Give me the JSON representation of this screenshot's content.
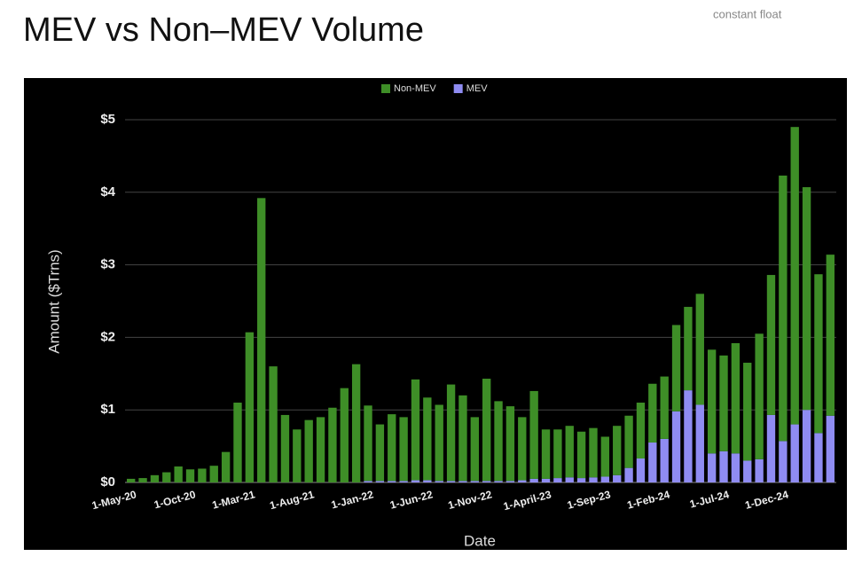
{
  "header": {
    "title": "MEV vs Non–MEV Volume",
    "note": "constant float"
  },
  "chart_data": {
    "type": "bar",
    "stacked": true,
    "categories": [
      "1-May-20",
      null,
      null,
      null,
      null,
      "1-Oct-20",
      null,
      null,
      null,
      null,
      "1-Mar-21",
      null,
      null,
      null,
      null,
      "1-Aug-21",
      null,
      null,
      null,
      null,
      "1-Jan-22",
      null,
      null,
      null,
      null,
      "1-Jun-22",
      null,
      null,
      null,
      null,
      "1-Nov-22",
      null,
      null,
      null,
      null,
      "1-April-23",
      null,
      null,
      null,
      null,
      "1-Sep-23",
      null,
      null,
      null,
      null,
      "1-Feb-24",
      null,
      null,
      null,
      null,
      "1-Jul-24",
      null,
      null,
      null,
      null,
      "1-Dec-24",
      null,
      null,
      null,
      null
    ],
    "series": [
      {
        "name": "MEV",
        "color": "#8f8cf2",
        "values": [
          0,
          0,
          0,
          0,
          0,
          0,
          0,
          0,
          0,
          0,
          0,
          0,
          0,
          0,
          0,
          0,
          0,
          0,
          0,
          0,
          0.02,
          0.02,
          0.02,
          0.02,
          0.03,
          0.03,
          0.02,
          0.02,
          0.02,
          0.02,
          0.02,
          0.02,
          0.02,
          0.03,
          0.05,
          0.05,
          0.06,
          0.07,
          0.06,
          0.07,
          0.08,
          0.1,
          0.2,
          0.33,
          0.55,
          0.6,
          0.98,
          1.27,
          1.07,
          0.4,
          0.43,
          0.4,
          0.3,
          0.32,
          0.93,
          0.57,
          0.8,
          1.0,
          0.68,
          0.92
        ]
      },
      {
        "name": "Non-MEV",
        "color": "#3e8e27",
        "values": [
          0.05,
          0.06,
          0.1,
          0.14,
          0.22,
          0.18,
          0.19,
          0.23,
          0.42,
          1.1,
          2.07,
          3.92,
          1.6,
          0.93,
          0.73,
          0.86,
          0.9,
          1.03,
          1.3,
          1.63,
          1.04,
          0.78,
          0.92,
          0.88,
          1.39,
          1.14,
          1.05,
          1.33,
          1.18,
          0.88,
          1.41,
          1.1,
          1.03,
          0.87,
          1.21,
          0.68,
          0.67,
          0.71,
          0.64,
          0.68,
          0.55,
          0.68,
          0.72,
          0.77,
          0.81,
          0.86,
          1.19,
          1.15,
          1.53,
          1.43,
          1.32,
          1.52,
          1.35,
          1.73,
          1.93,
          3.66,
          4.1,
          3.07,
          2.19,
          2.22
        ]
      }
    ],
    "ylim": [
      0,
      5
    ],
    "yticks": [
      {
        "value": 0,
        "label": "$0"
      },
      {
        "value": 1,
        "label": "$1"
      },
      {
        "value": 2,
        "label": "$2"
      },
      {
        "value": 3,
        "label": "$3"
      },
      {
        "value": 4,
        "label": "$4"
      },
      {
        "value": 5,
        "label": "$5"
      }
    ],
    "y_label": "Amount ($Trns)",
    "x_label": "Date",
    "grid": true,
    "legend": "top"
  }
}
